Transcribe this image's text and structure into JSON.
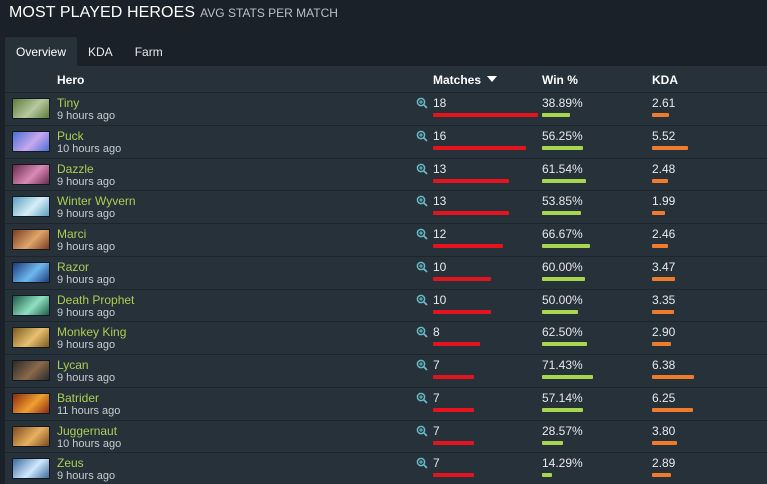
{
  "header": {
    "title": "MOST PLAYED HEROES",
    "subtitle": "AVG STATS PER MATCH"
  },
  "tabs": [
    {
      "label": "Overview",
      "active": true
    },
    {
      "label": "KDA",
      "active": false
    },
    {
      "label": "Farm",
      "active": false
    }
  ],
  "columns": {
    "hero": "Hero",
    "matches": "Matches",
    "win": "Win %",
    "kda": "KDA"
  },
  "sort": {
    "column": "Matches",
    "direction": "descending"
  },
  "colors": {
    "hero_link": "#a9cf54",
    "matches_bar": "#e3141d",
    "win_bar": "#a9d64f",
    "kda_bar": "#ef7c2c",
    "zoom_icon": "#67b8c4"
  },
  "scale": {
    "matches_max": 18,
    "win_max": 100,
    "kda_max": 6.38
  },
  "rows": [
    {
      "hero": "Tiny",
      "time": "9 hours ago",
      "matches": "18",
      "win": "38.89%",
      "kda": "2.61",
      "avatar_colors": [
        "#5d7a3a",
        "#b7c9a0"
      ]
    },
    {
      "hero": "Puck",
      "time": "10 hours ago",
      "matches": "16",
      "win": "56.25%",
      "kda": "5.52",
      "avatar_colors": [
        "#4a6fd0",
        "#c7a8f0"
      ]
    },
    {
      "hero": "Dazzle",
      "time": "9 hours ago",
      "matches": "13",
      "win": "61.54%",
      "kda": "2.48",
      "avatar_colors": [
        "#6b2a4a",
        "#d88bb6"
      ]
    },
    {
      "hero": "Winter Wyvern",
      "time": "9 hours ago",
      "matches": "13",
      "win": "53.85%",
      "kda": "1.99",
      "avatar_colors": [
        "#5a9fbf",
        "#d6eef7"
      ]
    },
    {
      "hero": "Marci",
      "time": "9 hours ago",
      "matches": "12",
      "win": "66.67%",
      "kda": "2.46",
      "avatar_colors": [
        "#7a3d22",
        "#e0a56a"
      ]
    },
    {
      "hero": "Razor",
      "time": "9 hours ago",
      "matches": "10",
      "win": "60.00%",
      "kda": "3.47",
      "avatar_colors": [
        "#1e3a7a",
        "#6fb8f0"
      ]
    },
    {
      "hero": "Death Prophet",
      "time": "9 hours ago",
      "matches": "10",
      "win": "50.00%",
      "kda": "3.35",
      "avatar_colors": [
        "#1f5a4a",
        "#8fe0c0"
      ]
    },
    {
      "hero": "Monkey King",
      "time": "9 hours ago",
      "matches": "8",
      "win": "62.50%",
      "kda": "2.90",
      "avatar_colors": [
        "#7a5a1e",
        "#e8c070"
      ]
    },
    {
      "hero": "Lycan",
      "time": "9 hours ago",
      "matches": "7",
      "win": "71.43%",
      "kda": "6.38",
      "avatar_colors": [
        "#2a2a2a",
        "#8a6a4a"
      ]
    },
    {
      "hero": "Batrider",
      "time": "11 hours ago",
      "matches": "7",
      "win": "57.14%",
      "kda": "6.25",
      "avatar_colors": [
        "#8a2a12",
        "#f0a030"
      ]
    },
    {
      "hero": "Juggernaut",
      "time": "10 hours ago",
      "matches": "7",
      "win": "28.57%",
      "kda": "3.80",
      "avatar_colors": [
        "#7a4a1e",
        "#e8b060"
      ]
    },
    {
      "hero": "Zeus",
      "time": "9 hours ago",
      "matches": "7",
      "win": "14.29%",
      "kda": "2.89",
      "avatar_colors": [
        "#3a6a9a",
        "#d0e8ff"
      ]
    }
  ]
}
